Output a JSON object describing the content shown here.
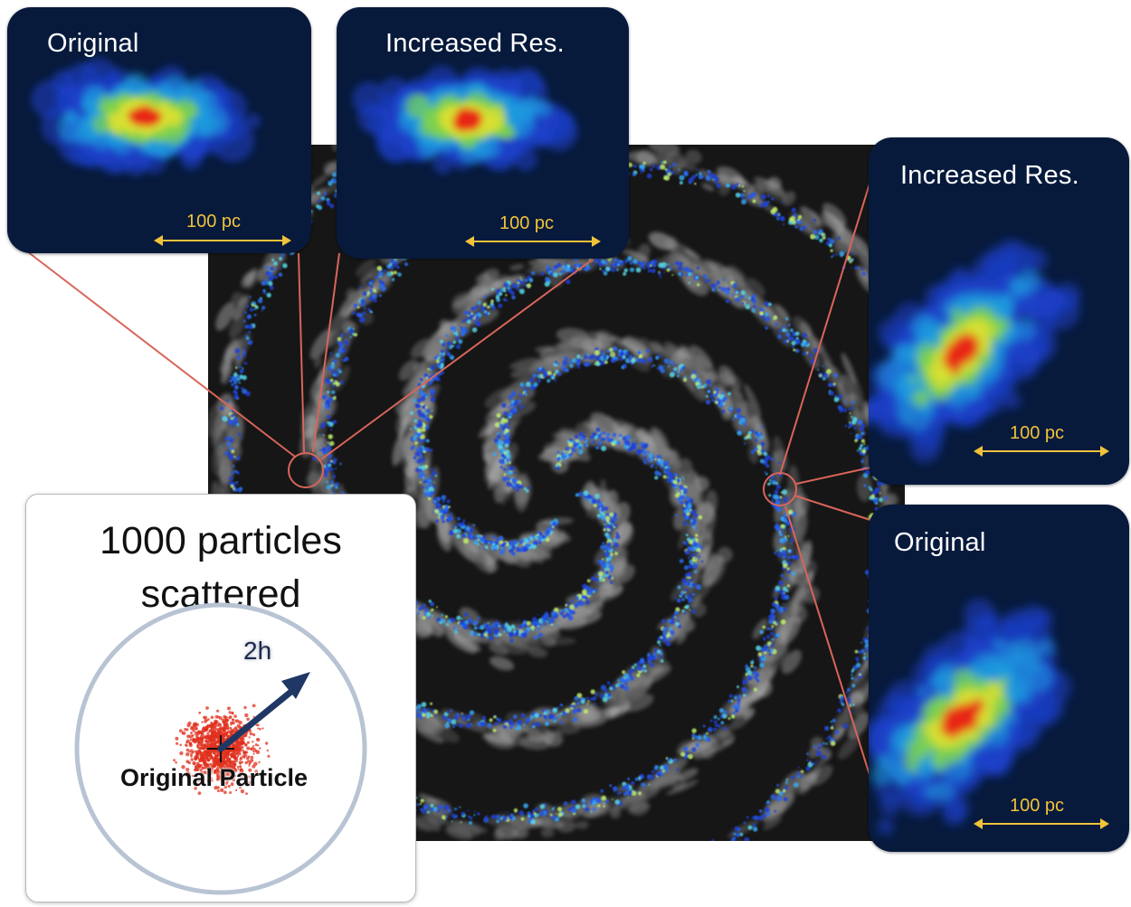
{
  "insets": {
    "top_left": {
      "title": "Original",
      "scale": "100 pc"
    },
    "top_center": {
      "title": "Increased Res.",
      "scale": "100 pc"
    },
    "right_top": {
      "title": "Increased Res.",
      "scale": "100 pc"
    },
    "right_bottom": {
      "title": "Original",
      "scale": "100 pc"
    }
  },
  "particle_box": {
    "heading_line1": "1000 particles",
    "heading_line2": "scattered",
    "center_label": "Original Particle",
    "radius_label": "2h"
  },
  "colors": {
    "inset_background": "#071a3c",
    "scale_bar": "#f2c23a",
    "connector": "#d9655a",
    "particles": "#e0301e",
    "arrow": "#1f3764",
    "kernel_circle": "#b8c3d3"
  }
}
